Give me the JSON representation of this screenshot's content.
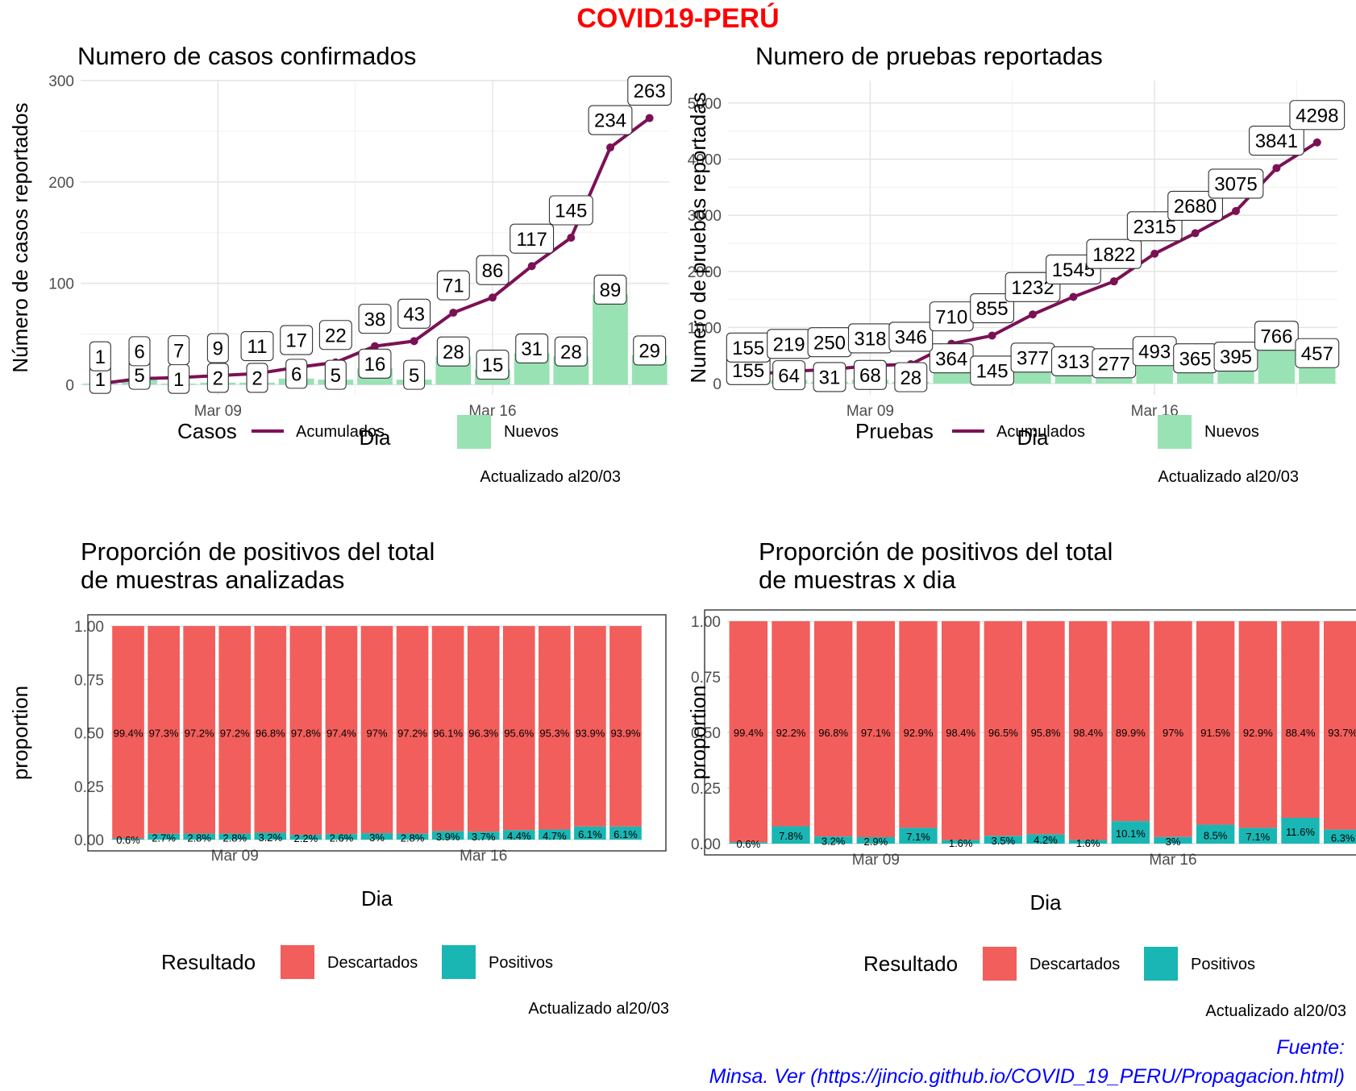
{
  "main_title": "COVID19-PERÚ",
  "footer": {
    "line1": "Fuente:",
    "line2": "Minsa. Ver (https://jincio.github.io/COVID_19_PERU/Propagacion.html)"
  },
  "colors": {
    "acumulados": "#7b1155",
    "nuevos": "#99e2b4",
    "descartados": "#f25e5b",
    "positivos": "#19b6b4",
    "title": "#ff0000",
    "footer": "#0000ff"
  },
  "chart_data": [
    {
      "type": "bar+line",
      "title": "Numero de casos confirmados",
      "xlabel": "Dia",
      "ylabel": "Número de casos reportados",
      "ylim": [
        -10,
        300
      ],
      "yticks": [
        0,
        100,
        200,
        300
      ],
      "x_ticks": [
        {
          "label": "Mar 09",
          "index": 3
        },
        {
          "label": "Mar 16",
          "index": 10
        }
      ],
      "x_count": 15,
      "series": [
        {
          "name": "Acumulados",
          "kind": "line",
          "values": [
            1,
            6,
            7,
            9,
            11,
            17,
            22,
            38,
            43,
            71,
            86,
            117,
            145,
            234,
            263
          ]
        },
        {
          "name": "Nuevos",
          "kind": "bar",
          "values": [
            1,
            5,
            1,
            2,
            2,
            6,
            5,
            16,
            5,
            28,
            15,
            31,
            28,
            89,
            29
          ]
        }
      ],
      "legend": {
        "title": "Casos",
        "items": [
          "Acumulados",
          "Nuevos"
        ],
        "position": "bottom"
      },
      "caption": "Actualizado al20/03",
      "grid": true
    },
    {
      "type": "bar+line",
      "title": "Numero de pruebas reportadas",
      "xlabel": "Dia",
      "ylabel": "Numero de pruebas reportadas",
      "ylim": [
        -200,
        5400
      ],
      "yticks": [
        0,
        1000,
        2000,
        3000,
        4000,
        5000
      ],
      "x_ticks": [
        {
          "label": "Mar 09",
          "index": 3
        },
        {
          "label": "Mar 16",
          "index": 10
        }
      ],
      "x_count": 15,
      "series": [
        {
          "name": "Acumulados",
          "kind": "line",
          "values": [
            155,
            219,
            250,
            318,
            346,
            710,
            855,
            1232,
            1545,
            1822,
            2315,
            2680,
            3075,
            3841,
            4298
          ]
        },
        {
          "name": "Nuevos",
          "kind": "bar",
          "values": [
            155,
            64,
            31,
            68,
            28,
            364,
            145,
            377,
            313,
            277,
            493,
            365,
            395,
            766,
            457
          ]
        }
      ],
      "legend": {
        "title": "Pruebas",
        "items": [
          "Acumulados",
          "Nuevos"
        ],
        "position": "bottom"
      },
      "caption": "Actualizado al20/03",
      "grid": true
    },
    {
      "type": "stacked-bar",
      "title_lines": [
        "Proporción de positivos del total",
        "de muestras analizadas"
      ],
      "xlabel": "Dia",
      "ylabel": "proportion",
      "ylim": [
        0,
        1
      ],
      "yticks": [
        "0.00",
        "0.25",
        "0.50",
        "0.75",
        "1.00"
      ],
      "x_ticks": [
        {
          "label": "Mar 09",
          "index": 3
        },
        {
          "label": "Mar 16",
          "index": 10
        }
      ],
      "x_count": 15,
      "series": [
        {
          "name": "Descartados",
          "labels": [
            "99.4%",
            "97.3%",
            "97.2%",
            "97.2%",
            "96.8%",
            "97.8%",
            "97.4%",
            "97%",
            "97.2%",
            "96.1%",
            "96.3%",
            "95.6%",
            "95.3%",
            "93.9%",
            "93.9%"
          ]
        },
        {
          "name": "Positivos",
          "values": [
            0.006,
            0.027,
            0.028,
            0.028,
            0.032,
            0.022,
            0.026,
            0.03,
            0.028,
            0.039,
            0.037,
            0.044,
            0.047,
            0.061,
            0.061
          ],
          "labels": [
            "0.6%",
            "2.7%",
            "2.8%",
            "2.8%",
            "3.2%",
            "2.2%",
            "2.6%",
            "3%",
            "2.8%",
            "3.9%",
            "3.7%",
            "4.4%",
            "4.7%",
            "6.1%",
            "6.1%"
          ]
        }
      ],
      "legend": {
        "title": "Resultado",
        "items": [
          "Descartados",
          "Positivos"
        ],
        "position": "bottom"
      },
      "caption": "Actualizado al20/03",
      "grid": true
    },
    {
      "type": "stacked-bar",
      "title_lines": [
        "Proporción de positivos del total",
        " de muestras x dia"
      ],
      "xlabel": "Dia",
      "ylabel": "proportion",
      "ylim": [
        0,
        1
      ],
      "yticks": [
        "0.00",
        "0.25",
        "0.50",
        "0.75",
        "1.00"
      ],
      "x_ticks": [
        {
          "label": "Mar 09",
          "index": 3
        },
        {
          "label": "Mar 16",
          "index": 10
        }
      ],
      "x_count": 15,
      "series": [
        {
          "name": "Descartados",
          "labels": [
            "99.4%",
            "92.2%",
            "96.8%",
            "97.1%",
            "92.9%",
            "98.4%",
            "96.5%",
            "95.8%",
            "98.4%",
            "89.9%",
            "97%",
            "91.5%",
            "92.9%",
            "88.4%",
            "93.7%"
          ]
        },
        {
          "name": "Positivos",
          "values": [
            0.006,
            0.078,
            0.032,
            0.029,
            0.071,
            0.016,
            0.035,
            0.042,
            0.016,
            0.101,
            0.03,
            0.085,
            0.071,
            0.116,
            0.063
          ],
          "labels": [
            "0.6%",
            "7.8%",
            "3.2%",
            "2.9%",
            "7.1%",
            "1.6%",
            "3.5%",
            "4.2%",
            "1.6%",
            "10.1%",
            "3%",
            "8.5%",
            "7.1%",
            "11.6%",
            "6.3%"
          ]
        }
      ],
      "legend": {
        "title": "Resultado",
        "items": [
          "Descartados",
          "Positivos"
        ],
        "position": "bottom"
      },
      "caption": "Actualizado al20/03",
      "grid": true
    }
  ]
}
